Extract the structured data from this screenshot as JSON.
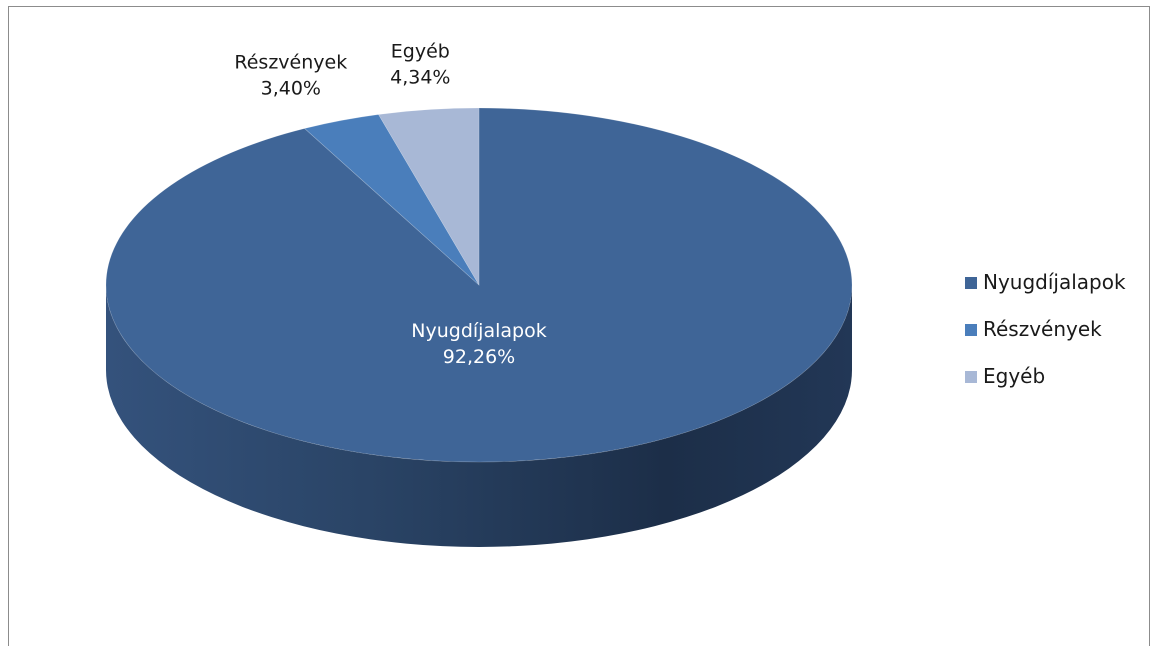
{
  "chart_data": {
    "type": "pie",
    "style": "3d",
    "title": "",
    "legend_position": "right",
    "slices": [
      {
        "label": "Nyugdíjalapok",
        "value": 92.26,
        "value_label": "92,26%",
        "color": "#3f6597"
      },
      {
        "label": "Részvények",
        "value": 3.4,
        "value_label": "3,40%",
        "color": "#4a7ebb"
      },
      {
        "label": "Egyéb",
        "value": 4.34,
        "value_label": "4,34%",
        "color": "#a8b8d6"
      }
    ]
  },
  "colors": {
    "side_dark": "#1c2e48",
    "side_light": "#34527c",
    "label_on_dark": "#ffffff",
    "label_outside": "#1a1a1a"
  }
}
